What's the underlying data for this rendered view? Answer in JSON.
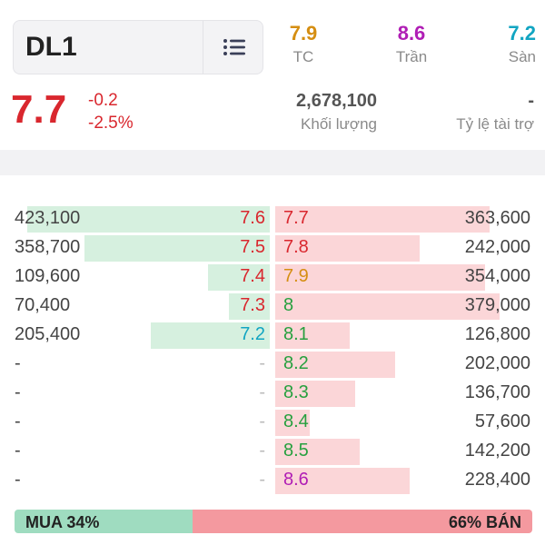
{
  "symbol": "DL1",
  "reference": {
    "tc": {
      "value": "7.9",
      "label": "TC"
    },
    "tran": {
      "value": "8.6",
      "label": "Trần"
    },
    "san": {
      "value": "7.2",
      "label": "Sàn"
    }
  },
  "last": {
    "price": "7.7",
    "change": "-0.2",
    "change_pct": "-2.5%"
  },
  "volume": {
    "value": "2,678,100",
    "label": "Khối lượng"
  },
  "finance": {
    "value": "-",
    "label": "Tỷ lệ tài trợ"
  },
  "book": [
    {
      "bid_vol": "423,100",
      "bid_price": "7.6",
      "bid_color": "red",
      "bid_fill": 0.47,
      "ask_price": "7.7",
      "ask_color": "red",
      "ask_vol": "363,600",
      "ask_fill": 0.43
    },
    {
      "bid_vol": "358,700",
      "bid_price": "7.5",
      "bid_color": "red",
      "bid_fill": 0.36,
      "ask_price": "7.8",
      "ask_color": "red",
      "ask_vol": "242,000",
      "ask_fill": 0.29
    },
    {
      "bid_vol": "109,600",
      "bid_price": "7.4",
      "bid_color": "red",
      "bid_fill": 0.12,
      "ask_price": "7.9",
      "ask_color": "amber",
      "ask_vol": "354,000",
      "ask_fill": 0.42
    },
    {
      "bid_vol": "70,400",
      "bid_price": "7.3",
      "bid_color": "red",
      "bid_fill": 0.08,
      "ask_price": "8",
      "ask_color": "green",
      "ask_vol": "379,000",
      "ask_fill": 0.45
    },
    {
      "bid_vol": "205,400",
      "bid_price": "7.2",
      "bid_color": "cyan",
      "bid_fill": 0.23,
      "ask_price": "8.1",
      "ask_color": "green",
      "ask_vol": "126,800",
      "ask_fill": 0.15
    },
    {
      "bid_vol": "-",
      "bid_price": "-",
      "bid_color": "dash",
      "bid_fill": 0,
      "ask_price": "8.2",
      "ask_color": "green",
      "ask_vol": "202,000",
      "ask_fill": 0.24
    },
    {
      "bid_vol": "-",
      "bid_price": "-",
      "bid_color": "dash",
      "bid_fill": 0,
      "ask_price": "8.3",
      "ask_color": "green",
      "ask_vol": "136,700",
      "ask_fill": 0.16
    },
    {
      "bid_vol": "-",
      "bid_price": "-",
      "bid_color": "dash",
      "bid_fill": 0,
      "ask_price": "8.4",
      "ask_color": "green",
      "ask_vol": "57,600",
      "ask_fill": 0.07
    },
    {
      "bid_vol": "-",
      "bid_price": "-",
      "bid_color": "dash",
      "bid_fill": 0,
      "ask_price": "8.5",
      "ask_color": "green",
      "ask_vol": "142,200",
      "ask_fill": 0.17
    },
    {
      "bid_vol": "-",
      "bid_price": "-",
      "bid_color": "dash",
      "bid_fill": 0,
      "ask_price": "8.6",
      "ask_color": "purple",
      "ask_vol": "228,400",
      "ask_fill": 0.27
    }
  ],
  "ratio": {
    "buy_label": "MUA 34%",
    "sell_label": "66% BÁN",
    "buy_fraction": 0.34
  },
  "colors": {
    "red": "#d9272e",
    "amber": "#d58e12",
    "green": "#27a03f",
    "purple": "#b01eb5",
    "cyan": "#12a5c2",
    "bid_bar": "#d6f0df",
    "ask_bar": "#fbd6d8",
    "buy_ratio": "#9fdcc0",
    "sell_ratio": "#f4999f"
  },
  "icons": {
    "menu": "list-menu-icon"
  }
}
